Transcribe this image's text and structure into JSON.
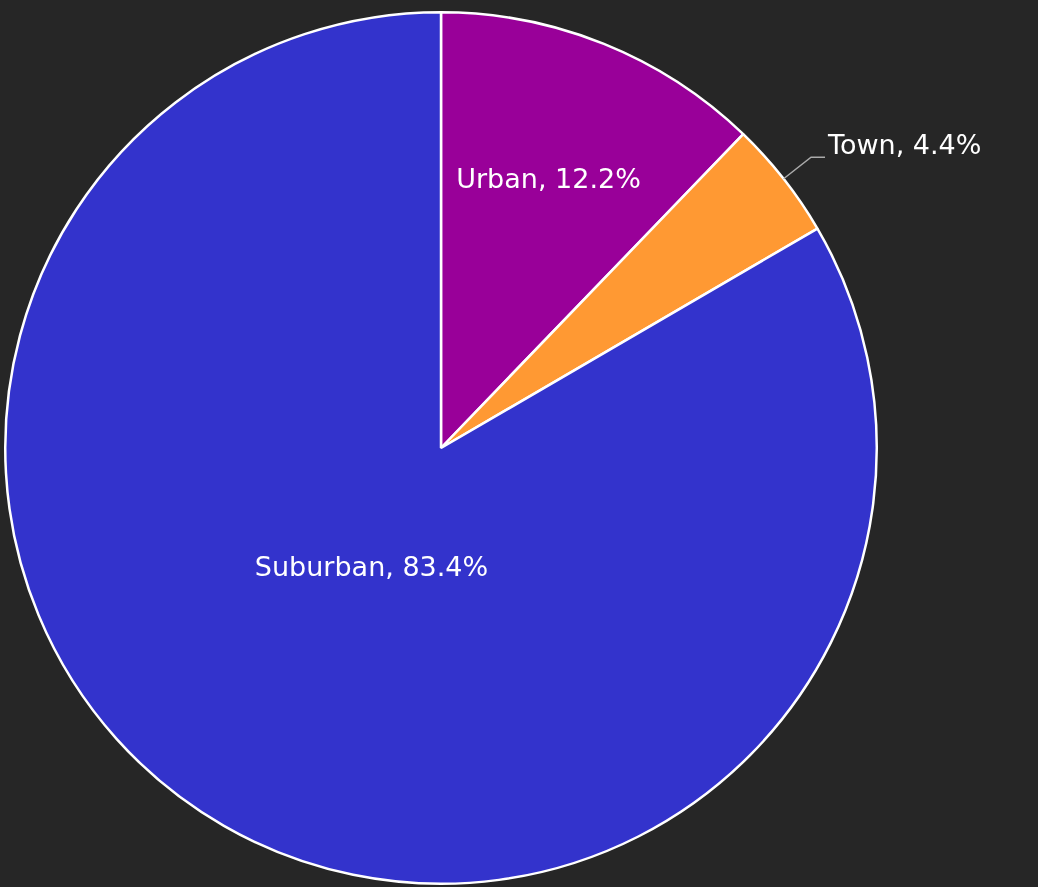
{
  "chart_data": {
    "type": "pie",
    "categories": [
      "Urban",
      "Town",
      "Suburban"
    ],
    "values": [
      12.2,
      4.4,
      83.4
    ],
    "colors": [
      "#990099",
      "#ff9933",
      "#3333cc"
    ],
    "value_labels": [
      "12.2%",
      "4.4%",
      "83.4%"
    ],
    "legend": false
  }
}
